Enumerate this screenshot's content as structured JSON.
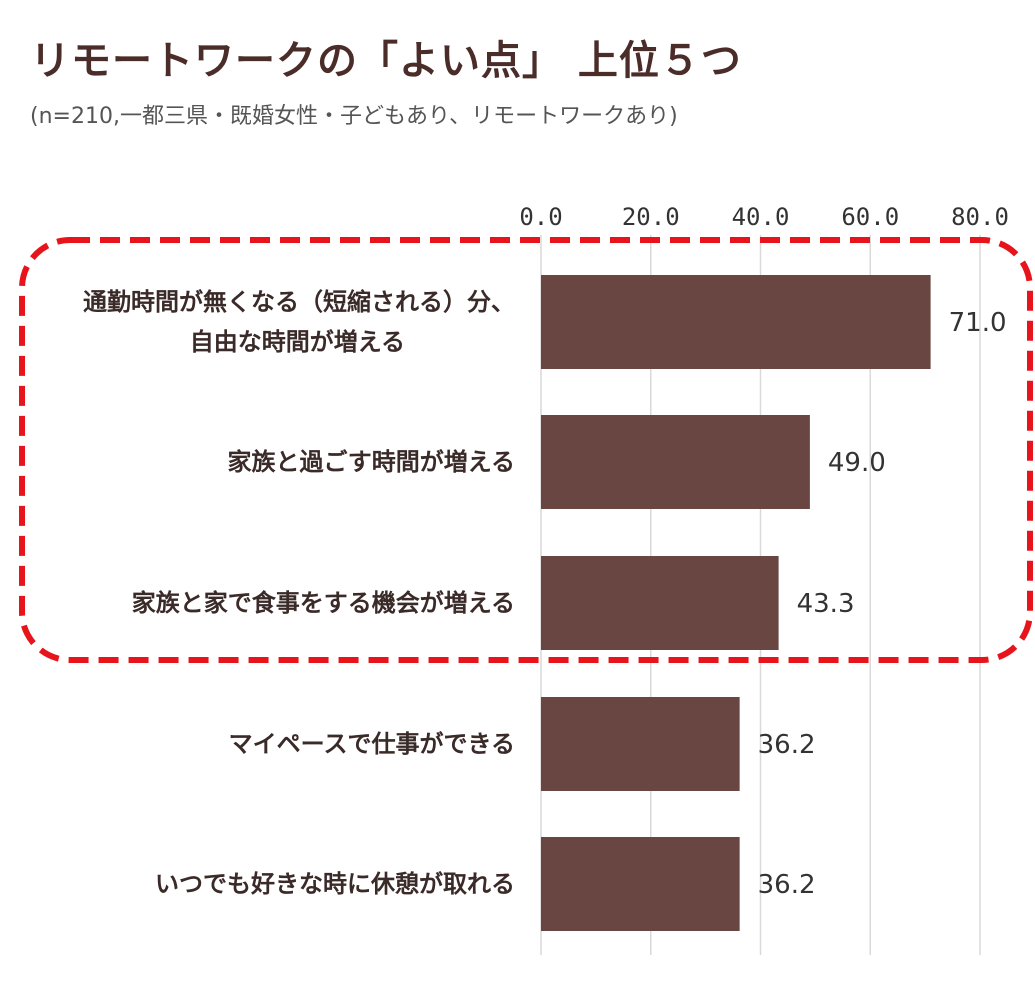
{
  "title": "リモートワークの「よい点」 上位５つ",
  "subtitle": "(n=210,一都三県・既婚女性・子どもあり、リモートワークあり)",
  "colors": {
    "bar": "#694641",
    "highlight": "#e8141b",
    "grid": "#d9d9d9",
    "title": "#4a2c28"
  },
  "chart_data": {
    "type": "bar",
    "orientation": "horizontal",
    "categories": [
      [
        "通勤時間が無くなる（短縮される）分、",
        "自由な時間が増える"
      ],
      [
        "家族と過ごす時間が増える"
      ],
      [
        "家族と家で食事をする機会が増える"
      ],
      [
        "マイペースで仕事ができる"
      ],
      [
        "いつでも好きな時に休憩が取れる"
      ]
    ],
    "values": [
      71.0,
      49.0,
      43.3,
      36.2,
      36.2
    ],
    "value_labels": [
      "71.0",
      "49.0",
      "43.3",
      "36.2",
      "36.2"
    ],
    "ticks": [
      0,
      20,
      40,
      60,
      80
    ],
    "tick_labels": [
      "0.0",
      "20.0",
      "40.0",
      "60.0",
      "80.0"
    ],
    "xlim": [
      0,
      80
    ],
    "axis_position": "top",
    "grid": true,
    "highlight": {
      "categories": [
        0,
        1,
        2
      ],
      "style": "dashed-rounded-box"
    }
  }
}
